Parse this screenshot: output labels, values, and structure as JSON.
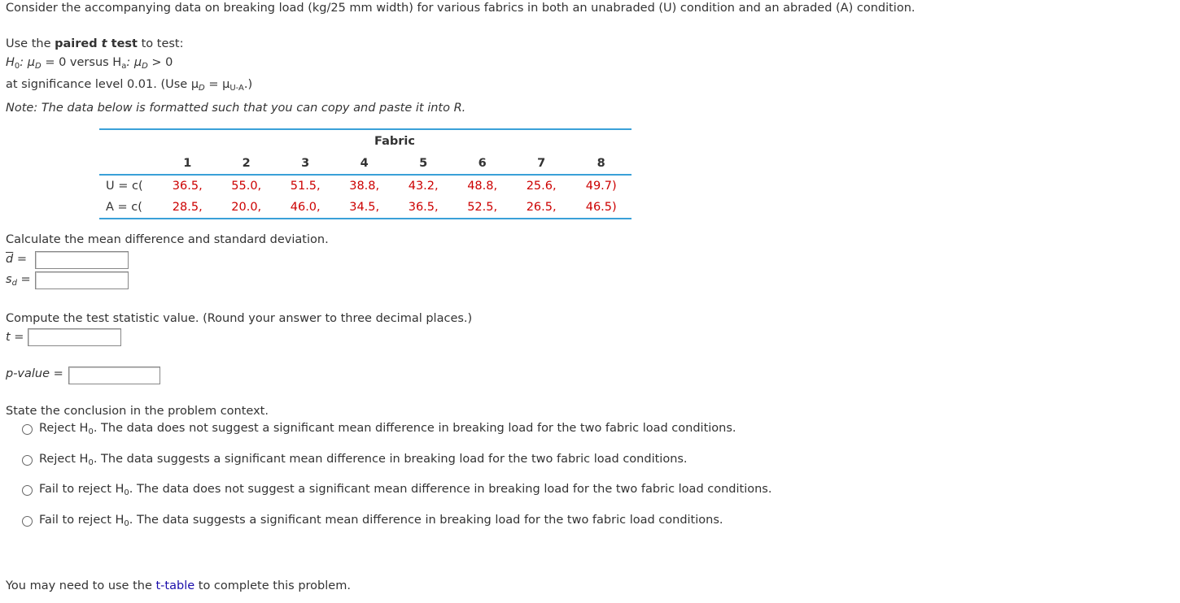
{
  "intro": "Consider the accompanying data on breaking load (kg/25 mm width) for various fabrics in both an unabraded (U) condition and an abraded (A) condition.",
  "use_prefix": "Use the ",
  "use_bold": "paired",
  "use_bold_t": "t",
  "use_bold_test": " test",
  "use_suffix": " to test:",
  "h0_part": "H",
  "h0_sub": "0",
  "mu_eq": ": μ",
  "mu_sub": "D",
  "eq_zero_versus": " = 0 versus H",
  "ha_sub": "a",
  "mu_gt": " > 0",
  "sig_text": "at significance level 0.01. (Use μ",
  "sig_mu_d_sub": "D",
  "sig_eq": " = μ",
  "sig_sub_ua": "U-A",
  "sig_close": ".)",
  "note": "Note: The data below is formatted such that you can copy and paste it into R.",
  "table": {
    "caption": "Fabric",
    "columns": [
      "1",
      "2",
      "3",
      "4",
      "5",
      "6",
      "7",
      "8"
    ],
    "rows": [
      {
        "label": "U = c(",
        "values": [
          "36.5,",
          "55.0,",
          "51.5,",
          "38.8,",
          "43.2,",
          "48.8,",
          "25.6,",
          "49.7)"
        ]
      },
      {
        "label": "A = c(",
        "values": [
          "28.5,",
          "20.0,",
          "46.0,",
          "34.5,",
          "36.5,",
          "52.5,",
          "26.5,",
          "46.5)"
        ]
      }
    ]
  },
  "calc_prompt": "Calculate the mean difference and standard deviation.",
  "dbar_label": "d =",
  "sd_label": "s",
  "sd_sub": "d",
  "sd_eq": " =",
  "stat_prompt": "Compute the test statistic value. (Round your answer to three decimal places.)",
  "t_label": "t =",
  "p_label_it": "p-value",
  "p_eq": " =",
  "conclusion_prompt": "State the conclusion in the problem context.",
  "options": [
    {
      "pre": "Reject H",
      "sub": "0",
      "post": ". The data does not suggest a significant mean difference in breaking load for the two fabric load conditions."
    },
    {
      "pre": "Reject H",
      "sub": "0",
      "post": ". The data suggests a significant mean difference in breaking load for the two fabric load conditions."
    },
    {
      "pre": "Fail to reject H",
      "sub": "0",
      "post": ". The data does not suggest a significant mean difference in breaking load for the two fabric load conditions."
    },
    {
      "pre": "Fail to reject H",
      "sub": "0",
      "post": ". The data suggests a significant mean difference in breaking load for the two fabric load conditions."
    }
  ],
  "footer_pre": "You may need to use the ",
  "footer_link": "t-table",
  "footer_post": " to complete this problem."
}
